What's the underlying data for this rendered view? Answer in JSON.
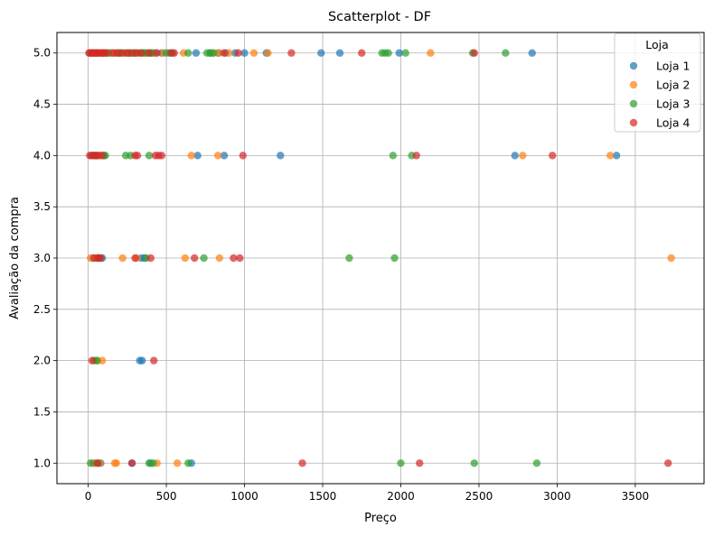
{
  "chart_data": {
    "type": "scatter",
    "title": "Scatterplot - DF",
    "xlabel": "Preço",
    "ylabel": "Avaliação da compra",
    "xlim": [
      -200,
      3940
    ],
    "ylim": [
      0.8,
      5.2
    ],
    "xticks": [
      "0",
      "500",
      "1000",
      "1500",
      "2000",
      "2500",
      "3000",
      "3500"
    ],
    "yticks": [
      "1.0",
      "1.5",
      "2.0",
      "2.5",
      "3.0",
      "3.5",
      "4.0",
      "4.5",
      "5.0"
    ],
    "grid": true,
    "legend": {
      "title": "Loja",
      "placement": "top-right"
    },
    "series": [
      {
        "name": "Loja 1",
        "color": "#1f77b4",
        "points": [
          [
            10,
            5
          ],
          [
            25,
            5
          ],
          [
            40,
            5
          ],
          [
            55,
            5
          ],
          [
            75,
            5
          ],
          [
            95,
            5
          ],
          [
            120,
            5
          ],
          [
            150,
            5
          ],
          [
            180,
            5
          ],
          [
            210,
            5
          ],
          [
            240,
            5
          ],
          [
            270,
            5
          ],
          [
            300,
            5
          ],
          [
            330,
            5
          ],
          [
            360,
            5
          ],
          [
            400,
            5
          ],
          [
            430,
            5
          ],
          [
            470,
            5
          ],
          [
            520,
            5
          ],
          [
            690,
            5
          ],
          [
            780,
            5
          ],
          [
            830,
            5
          ],
          [
            880,
            5
          ],
          [
            940,
            5
          ],
          [
            1000,
            5
          ],
          [
            1140,
            5
          ],
          [
            1490,
            5
          ],
          [
            1610,
            5
          ],
          [
            1990,
            5
          ],
          [
            2840,
            5
          ],
          [
            20,
            4
          ],
          [
            45,
            4
          ],
          [
            70,
            4
          ],
          [
            100,
            4
          ],
          [
            700,
            4
          ],
          [
            870,
            4
          ],
          [
            1230,
            4
          ],
          [
            2730,
            4
          ],
          [
            3380,
            4
          ],
          [
            30,
            3
          ],
          [
            60,
            3
          ],
          [
            90,
            3
          ],
          [
            340,
            3
          ],
          [
            360,
            3
          ],
          [
            330,
            2
          ],
          [
            345,
            2
          ],
          [
            40,
            1
          ],
          [
            80,
            1
          ],
          [
            280,
            1
          ],
          [
            400,
            1
          ],
          [
            660,
            1
          ]
        ]
      },
      {
        "name": "Loja 2",
        "color": "#ff7f0e",
        "points": [
          [
            15,
            5
          ],
          [
            35,
            5
          ],
          [
            60,
            5
          ],
          [
            85,
            5
          ],
          [
            110,
            5
          ],
          [
            140,
            5
          ],
          [
            170,
            5
          ],
          [
            200,
            5
          ],
          [
            235,
            5
          ],
          [
            265,
            5
          ],
          [
            290,
            5
          ],
          [
            325,
            5
          ],
          [
            370,
            5
          ],
          [
            420,
            5
          ],
          [
            480,
            5
          ],
          [
            610,
            5
          ],
          [
            800,
            5
          ],
          [
            840,
            5
          ],
          [
            900,
            5
          ],
          [
            1060,
            5
          ],
          [
            1150,
            5
          ],
          [
            2190,
            5
          ],
          [
            30,
            4
          ],
          [
            55,
            4
          ],
          [
            80,
            4
          ],
          [
            660,
            4
          ],
          [
            830,
            4
          ],
          [
            2780,
            4
          ],
          [
            3340,
            4
          ],
          [
            15,
            3
          ],
          [
            55,
            3
          ],
          [
            220,
            3
          ],
          [
            310,
            3
          ],
          [
            620,
            3
          ],
          [
            840,
            3
          ],
          [
            3730,
            3
          ],
          [
            60,
            2
          ],
          [
            90,
            2
          ],
          [
            30,
            1
          ],
          [
            75,
            1
          ],
          [
            170,
            1
          ],
          [
            180,
            1
          ],
          [
            440,
            1
          ],
          [
            570,
            1
          ]
        ]
      },
      {
        "name": "Loja 3",
        "color": "#2ca02c",
        "points": [
          [
            50,
            5
          ],
          [
            130,
            5
          ],
          [
            200,
            5
          ],
          [
            260,
            5
          ],
          [
            300,
            5
          ],
          [
            350,
            5
          ],
          [
            380,
            5
          ],
          [
            410,
            5
          ],
          [
            500,
            5
          ],
          [
            540,
            5
          ],
          [
            640,
            5
          ],
          [
            760,
            5
          ],
          [
            780,
            5
          ],
          [
            800,
            5
          ],
          [
            1880,
            5
          ],
          [
            1900,
            5
          ],
          [
            1920,
            5
          ],
          [
            2030,
            5
          ],
          [
            2460,
            5
          ],
          [
            2670,
            5
          ],
          [
            40,
            4
          ],
          [
            110,
            4
          ],
          [
            240,
            4
          ],
          [
            270,
            4
          ],
          [
            390,
            4
          ],
          [
            1950,
            4
          ],
          [
            2070,
            4
          ],
          [
            70,
            3
          ],
          [
            370,
            3
          ],
          [
            740,
            3
          ],
          [
            1670,
            3
          ],
          [
            1960,
            3
          ],
          [
            40,
            2
          ],
          [
            55,
            2
          ],
          [
            15,
            1
          ],
          [
            60,
            1
          ],
          [
            390,
            1
          ],
          [
            415,
            1
          ],
          [
            640,
            1
          ],
          [
            2000,
            1
          ],
          [
            2470,
            1
          ],
          [
            2870,
            1
          ]
        ]
      },
      {
        "name": "Loja 4",
        "color": "#d62728",
        "points": [
          [
            5,
            5
          ],
          [
            20,
            5
          ],
          [
            30,
            5
          ],
          [
            45,
            5
          ],
          [
            60,
            5
          ],
          [
            70,
            5
          ],
          [
            90,
            5
          ],
          [
            100,
            5
          ],
          [
            115,
            5
          ],
          [
            160,
            5
          ],
          [
            190,
            5
          ],
          [
            220,
            5
          ],
          [
            250,
            5
          ],
          [
            280,
            5
          ],
          [
            310,
            5
          ],
          [
            340,
            5
          ],
          [
            390,
            5
          ],
          [
            440,
            5
          ],
          [
            530,
            5
          ],
          [
            550,
            5
          ],
          [
            870,
            5
          ],
          [
            960,
            5
          ],
          [
            1300,
            5
          ],
          [
            1750,
            5
          ],
          [
            2470,
            5
          ],
          [
            10,
            4
          ],
          [
            30,
            4
          ],
          [
            50,
            4
          ],
          [
            60,
            4
          ],
          [
            90,
            4
          ],
          [
            300,
            4
          ],
          [
            315,
            4
          ],
          [
            430,
            4
          ],
          [
            450,
            4
          ],
          [
            470,
            4
          ],
          [
            990,
            4
          ],
          [
            2100,
            4
          ],
          [
            2970,
            4
          ],
          [
            40,
            3
          ],
          [
            65,
            3
          ],
          [
            80,
            3
          ],
          [
            300,
            3
          ],
          [
            400,
            3
          ],
          [
            680,
            3
          ],
          [
            930,
            3
          ],
          [
            970,
            3
          ],
          [
            25,
            2
          ],
          [
            420,
            2
          ],
          [
            60,
            1
          ],
          [
            280,
            1
          ],
          [
            1370,
            1
          ],
          [
            2120,
            1
          ],
          [
            3710,
            1
          ]
        ]
      }
    ]
  }
}
